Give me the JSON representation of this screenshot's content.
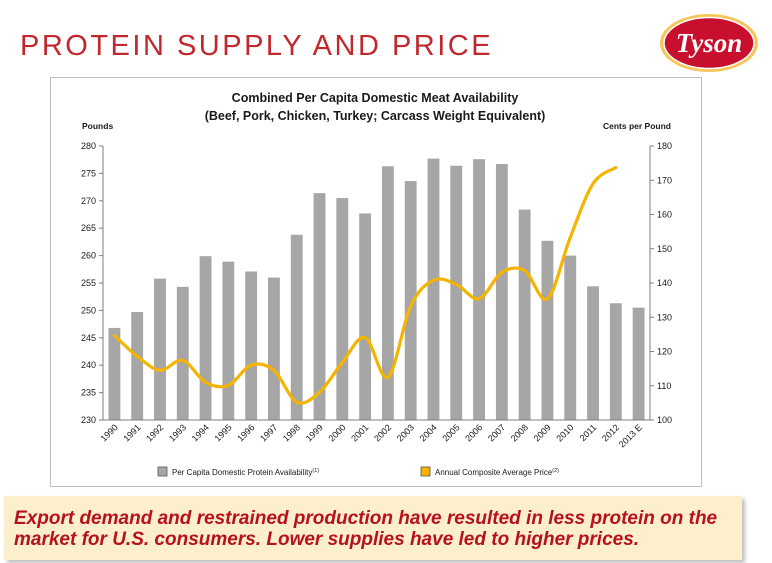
{
  "slide": {
    "title": "PROTEIN SUPPLY AND PRICE",
    "logo_text": "Tyson",
    "callout_text": "Export demand and restrained production have resulted in less protein on the market for U.S. consumers. Lower supplies have led to higher prices."
  },
  "colors": {
    "title": "#c0282d",
    "bars": "#a6a6a6",
    "price_line": "#f5b400",
    "callout_bg": "#fdeecd",
    "callout_text": "#b5121b"
  },
  "chart_data": {
    "type": "bar",
    "title": "Combined Per Capita Domestic Meat Availability",
    "subtitle": "(Beef, Pork, Chicken, Turkey; Carcass Weight Equivalent)",
    "ylabel": "Pounds",
    "y2label": "Cents per Pound",
    "ylim": [
      230,
      280
    ],
    "yticks": [
      230,
      235,
      240,
      245,
      250,
      255,
      260,
      265,
      270,
      275,
      280
    ],
    "y2lim": [
      100,
      180
    ],
    "y2ticks": [
      100,
      110,
      120,
      130,
      140,
      150,
      160,
      170,
      180
    ],
    "grid": false,
    "legend_position": "bottom",
    "categories": [
      "1990",
      "1991",
      "1992",
      "1993",
      "1994",
      "1995",
      "1996",
      "1997",
      "1998",
      "1999",
      "2000",
      "2001",
      "2002",
      "2003",
      "2004",
      "2005",
      "2006",
      "2007",
      "2008",
      "2009",
      "2010",
      "2011",
      "2012",
      "2013 E"
    ],
    "series": [
      {
        "name": "Per Capita Domestic Protein Availability",
        "name_superscript": "(1)",
        "type": "bar",
        "axis": "left",
        "values": [
          246.8,
          249.7,
          255.8,
          254.3,
          259.9,
          258.9,
          257.1,
          256.0,
          263.8,
          271.4,
          270.5,
          267.7,
          276.3,
          273.6,
          277.7,
          276.4,
          277.6,
          276.7,
          268.4,
          262.7,
          260.0,
          254.4,
          251.3,
          250.5
        ]
      },
      {
        "name": "Annual Composite Average Price",
        "name_superscript": "(2)",
        "type": "line",
        "axis": "right",
        "values": [
          124.7,
          118.6,
          114.5,
          117.4,
          111.0,
          110.1,
          116.0,
          114.5,
          105.2,
          108.1,
          116.8,
          124.1,
          112.5,
          133.3,
          140.8,
          139.6,
          135.4,
          143.1,
          143.6,
          135.4,
          153.3,
          169.0,
          173.7,
          null
        ]
      }
    ]
  }
}
